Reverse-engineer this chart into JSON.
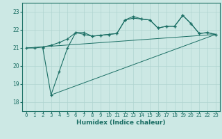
{
  "xlabel": "Humidex (Indice chaleur)",
  "bg_color": "#cce8e4",
  "line_color": "#1a6e64",
  "grid_color": "#b0d4d0",
  "xlim": [
    -0.5,
    23.5
  ],
  "ylim": [
    17.5,
    23.5
  ],
  "yticks": [
    18,
    19,
    20,
    21,
    22,
    23
  ],
  "xticks": [
    0,
    1,
    2,
    3,
    4,
    5,
    6,
    7,
    8,
    9,
    10,
    11,
    12,
    13,
    14,
    15,
    16,
    17,
    18,
    19,
    20,
    21,
    22,
    23
  ],
  "line1_x": [
    0,
    1,
    2,
    3,
    4,
    5,
    6,
    7,
    8,
    9,
    10,
    11,
    12,
    13,
    14,
    15,
    16,
    17,
    18,
    19,
    20,
    21,
    22,
    23
  ],
  "line1_y": [
    21.0,
    21.0,
    21.05,
    21.15,
    21.3,
    21.5,
    21.85,
    21.85,
    21.65,
    21.7,
    21.75,
    21.8,
    22.55,
    22.75,
    22.6,
    22.55,
    22.1,
    22.2,
    22.2,
    22.8,
    22.35,
    21.8,
    21.85,
    21.75
  ],
  "line2_x": [
    2,
    3,
    4,
    5,
    6,
    7,
    8,
    9,
    10,
    11,
    12,
    13,
    14,
    15,
    16,
    17,
    18,
    19,
    20,
    21,
    22,
    23
  ],
  "line2_y": [
    21.0,
    18.4,
    19.7,
    21.0,
    21.85,
    21.75,
    21.65,
    21.7,
    21.75,
    21.8,
    22.55,
    22.65,
    22.6,
    22.55,
    22.1,
    22.2,
    22.2,
    22.8,
    22.35,
    21.8,
    21.85,
    21.75
  ],
  "line3_x": [
    0,
    23
  ],
  "line3_y": [
    21.0,
    21.75
  ],
  "line4_x": [
    3,
    23
  ],
  "line4_y": [
    18.4,
    21.75
  ]
}
